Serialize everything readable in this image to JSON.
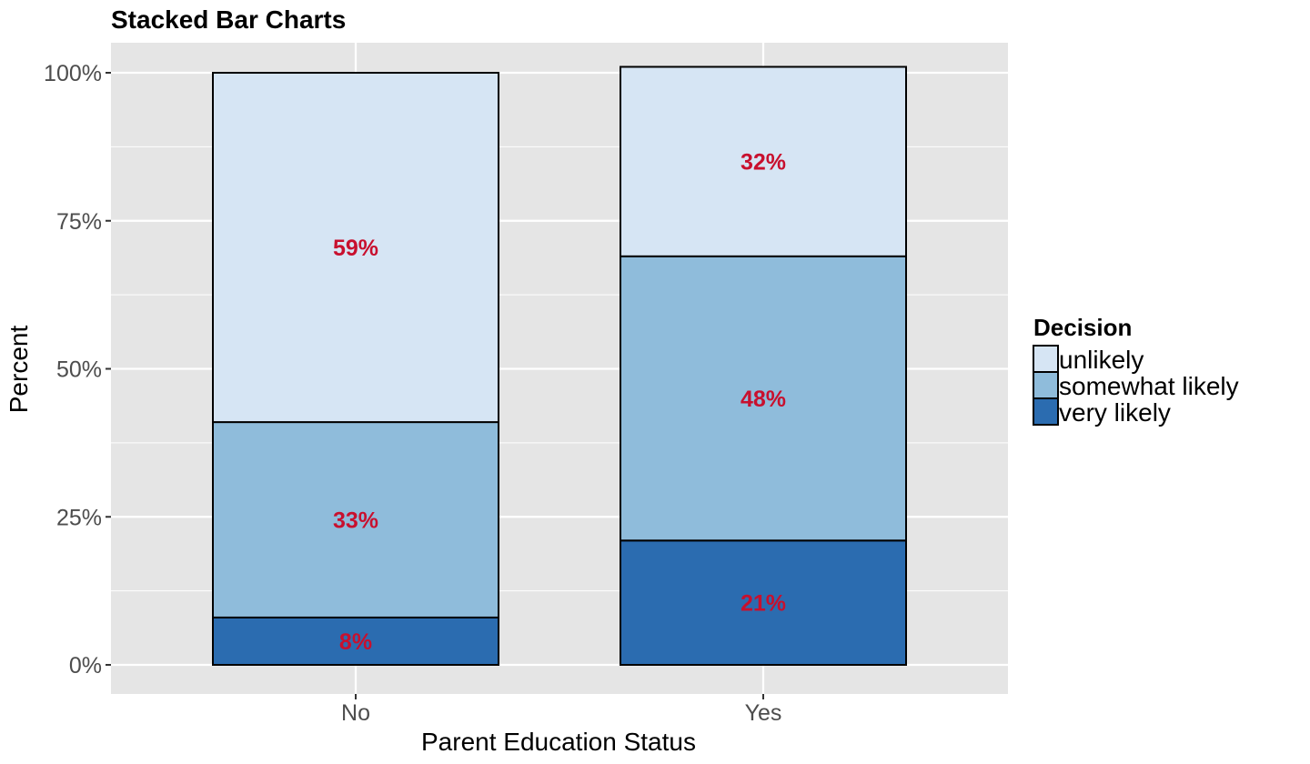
{
  "chart_data": {
    "type": "bar",
    "stacked": true,
    "title": "Stacked Bar Charts",
    "xlabel": "Parent Education Status",
    "ylabel": "Percent",
    "categories": [
      "No",
      "Yes"
    ],
    "ylim": [
      0,
      100
    ],
    "yticks": [
      0,
      25,
      50,
      75,
      100
    ],
    "ytick_labels": [
      "0%",
      "25%",
      "50%",
      "75%",
      "100%"
    ],
    "grid": true,
    "legend": {
      "title": "Decision",
      "placement": "right"
    },
    "series": [
      {
        "name": "very likely",
        "values": [
          8,
          21
        ],
        "labels": [
          "8%",
          "21%"
        ],
        "color": "#2b6cb0"
      },
      {
        "name": "somewhat likely",
        "values": [
          33,
          48
        ],
        "labels": [
          "33%",
          "48%"
        ],
        "color": "#8fbcdb"
      },
      {
        "name": "unlikely",
        "values": [
          59,
          32
        ],
        "labels": [
          "59%",
          "32%"
        ],
        "color": "#d6e5f4"
      }
    ],
    "legend_order": [
      "unlikely",
      "somewhat likely",
      "very likely"
    ],
    "colors": {
      "panel": "#e5e5e5",
      "grid": "#ffffff",
      "label": "#c8102e",
      "border": "#000000"
    }
  }
}
